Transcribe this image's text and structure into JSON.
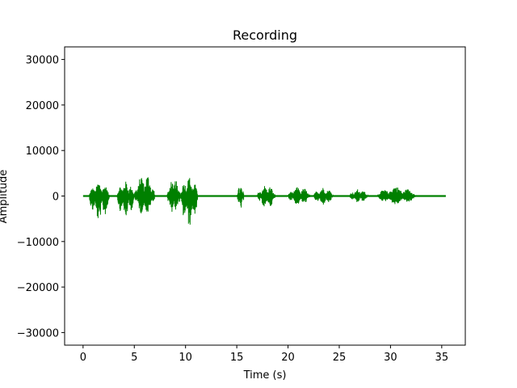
{
  "chart_data": {
    "type": "line",
    "title": "Recording",
    "xlabel": "Time (s)",
    "ylabel": "Amplitude",
    "xlim": [
      -1.8,
      37.3
    ],
    "ylim": [
      -32768,
      32767
    ],
    "x_ticks": [
      0,
      5,
      10,
      15,
      20,
      25,
      30,
      35
    ],
    "y_ticks": [
      -30000,
      -20000,
      -10000,
      0,
      10000,
      20000,
      30000
    ],
    "grid": false,
    "line_color": "#008000",
    "series": [
      {
        "bursts": [
          {
            "start": 0.6,
            "end": 2.6,
            "max": 3000,
            "min": -5500
          },
          {
            "start": 3.3,
            "end": 5.0,
            "max": 3200,
            "min": -4800
          },
          {
            "start": 5.0,
            "end": 7.0,
            "max": 5000,
            "min": -4200
          },
          {
            "start": 8.2,
            "end": 9.5,
            "max": 3800,
            "min": -4000
          },
          {
            "start": 9.5,
            "end": 11.2,
            "max": 4200,
            "min": -6800
          },
          {
            "start": 15.0,
            "end": 15.7,
            "max": 2200,
            "min": -2800
          },
          {
            "start": 17.0,
            "end": 18.8,
            "max": 2400,
            "min": -2700
          },
          {
            "start": 20.0,
            "end": 22.2,
            "max": 2000,
            "min": -2000
          },
          {
            "start": 22.5,
            "end": 24.4,
            "max": 1900,
            "min": -2000
          },
          {
            "start": 26.0,
            "end": 27.8,
            "max": 1500,
            "min": -1500
          },
          {
            "start": 28.7,
            "end": 32.5,
            "max": 2100,
            "min": -1900
          }
        ],
        "noise_floor": 150,
        "x_start": 0,
        "x_end": 35.4
      }
    ]
  }
}
